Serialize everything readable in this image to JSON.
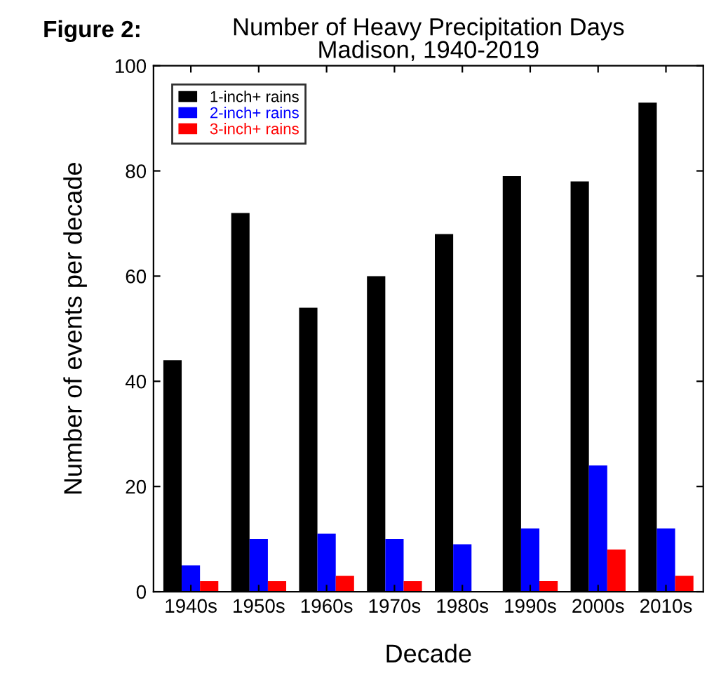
{
  "chart_data": {
    "type": "bar",
    "title": "Number of Heavy Precipitation Days\nMadison, 1940-2019",
    "xlabel": "Decade",
    "ylabel": "Number of events per decade",
    "annotations": [
      "Figure 2:"
    ],
    "categories": [
      "1940s",
      "1950s",
      "1960s",
      "1970s",
      "1980s",
      "1990s",
      "2000s",
      "2010s"
    ],
    "series": [
      {
        "name": "1-inch+ rains",
        "color": "#000000",
        "values": [
          44,
          72,
          54,
          60,
          68,
          79,
          78,
          93
        ]
      },
      {
        "name": "2-inch+ rains",
        "color": "#0000ff",
        "values": [
          5,
          10,
          11,
          10,
          9,
          12,
          24,
          12
        ]
      },
      {
        "name": "3-inch+ rains",
        "color": "#ff0000",
        "values": [
          2,
          2,
          3,
          2,
          0,
          2,
          8,
          3
        ]
      }
    ],
    "ylim": [
      0,
      100
    ],
    "yticks": [
      0,
      20,
      40,
      60,
      80,
      100
    ],
    "grid": false,
    "legend": "top left"
  }
}
